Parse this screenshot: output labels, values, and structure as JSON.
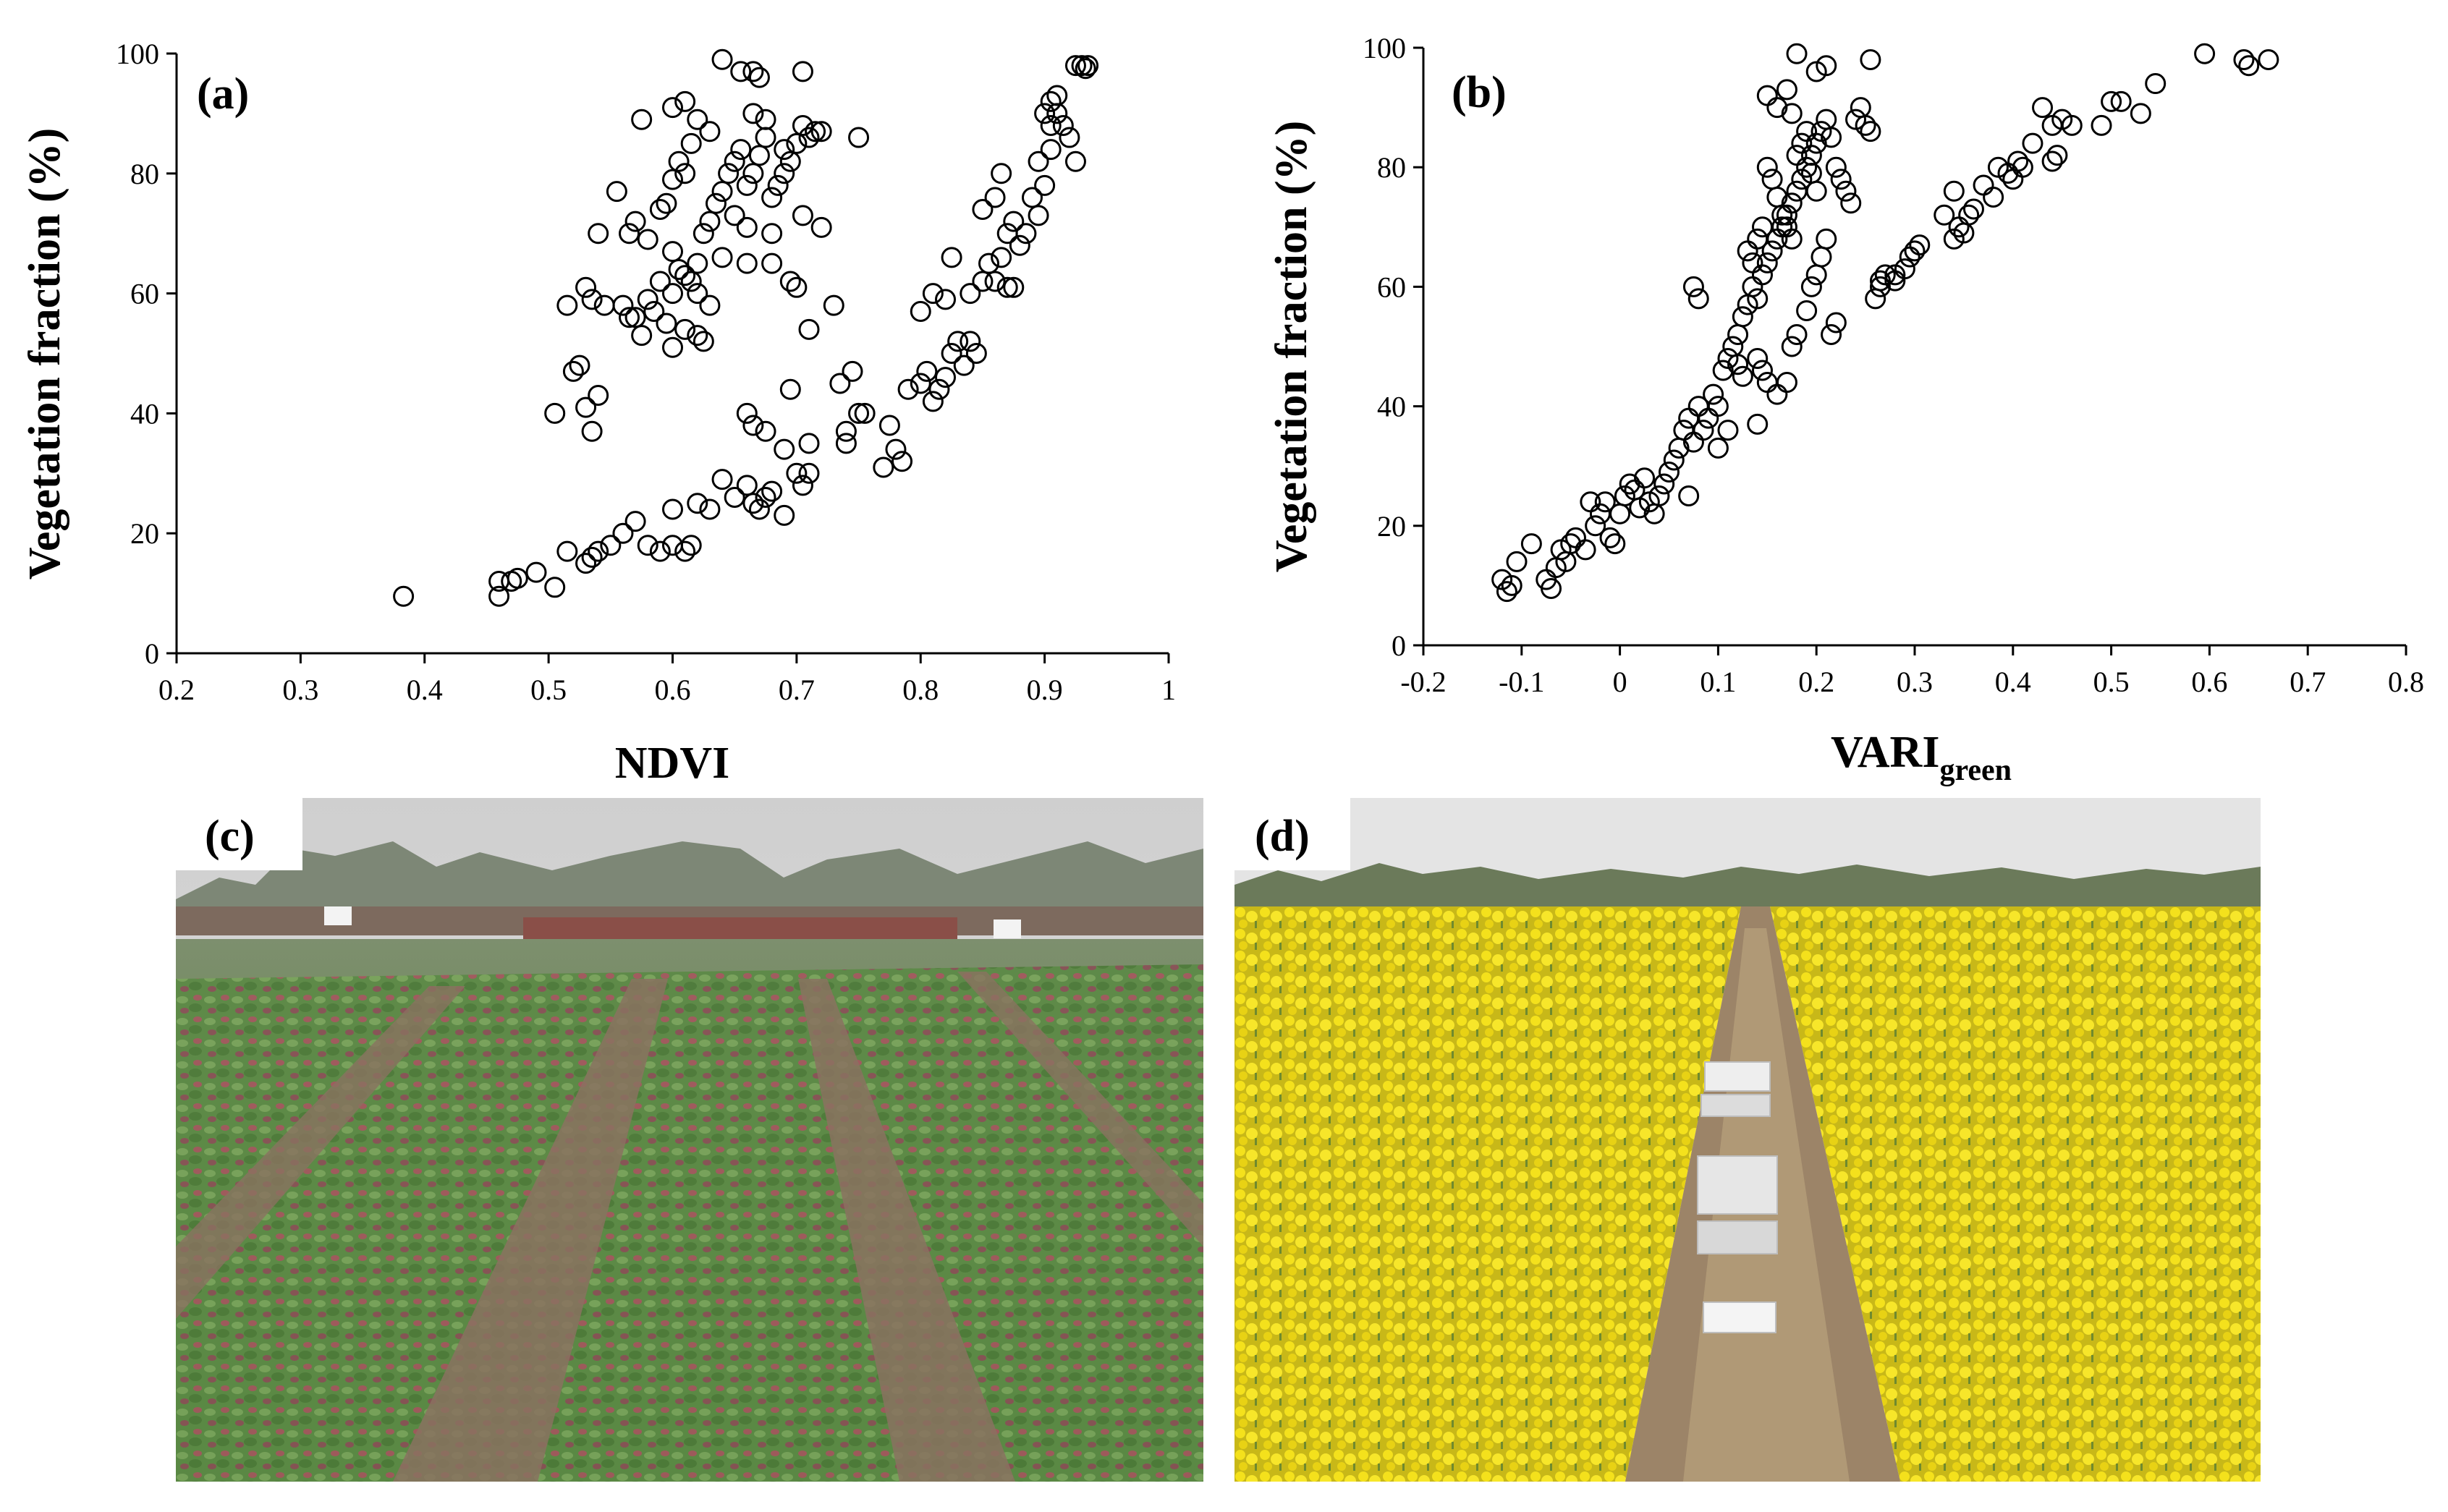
{
  "chart_data": [
    {
      "panel": "(a)",
      "type": "scatter",
      "xlabel": "NDVI",
      "ylabel": "Vegetation fraction (%)",
      "xlim": [
        0.2,
        1.0
      ],
      "ylim": [
        0,
        100
      ],
      "xticks": [
        "0.2",
        "0.3",
        "0.4",
        "0.5",
        "0.6",
        "0.7",
        "0.8",
        "0.9",
        "1"
      ],
      "yticks": [
        "0",
        "20",
        "40",
        "60",
        "80",
        "100"
      ],
      "grid": false,
      "marker": "open-circle",
      "points": [
        [
          0.383,
          9.5
        ],
        [
          0.46,
          9.5
        ],
        [
          0.46,
          12
        ],
        [
          0.47,
          12
        ],
        [
          0.475,
          12.5
        ],
        [
          0.49,
          13.5
        ],
        [
          0.505,
          11
        ],
        [
          0.515,
          17
        ],
        [
          0.53,
          15
        ],
        [
          0.535,
          16
        ],
        [
          0.54,
          17
        ],
        [
          0.55,
          18
        ],
        [
          0.56,
          20
        ],
        [
          0.57,
          22
        ],
        [
          0.58,
          18
        ],
        [
          0.59,
          17
        ],
        [
          0.6,
          18
        ],
        [
          0.61,
          17
        ],
        [
          0.615,
          18
        ],
        [
          0.6,
          24
        ],
        [
          0.62,
          25
        ],
        [
          0.63,
          24
        ],
        [
          0.64,
          29
        ],
        [
          0.65,
          26
        ],
        [
          0.66,
          28
        ],
        [
          0.665,
          25
        ],
        [
          0.67,
          24
        ],
        [
          0.675,
          26
        ],
        [
          0.68,
          27
        ],
        [
          0.69,
          23
        ],
        [
          0.7,
          30
        ],
        [
          0.705,
          28
        ],
        [
          0.71,
          30
        ],
        [
          0.66,
          40
        ],
        [
          0.665,
          38
        ],
        [
          0.675,
          37
        ],
        [
          0.69,
          34
        ],
        [
          0.695,
          44
        ],
        [
          0.71,
          35
        ],
        [
          0.735,
          45
        ],
        [
          0.74,
          35
        ],
        [
          0.74,
          37
        ],
        [
          0.745,
          47
        ],
        [
          0.75,
          40
        ],
        [
          0.755,
          40
        ],
        [
          0.77,
          31
        ],
        [
          0.775,
          38
        ],
        [
          0.78,
          34
        ],
        [
          0.785,
          32
        ],
        [
          0.79,
          44
        ],
        [
          0.8,
          45
        ],
        [
          0.805,
          47
        ],
        [
          0.81,
          42
        ],
        [
          0.815,
          44
        ],
        [
          0.82,
          46
        ],
        [
          0.825,
          50
        ],
        [
          0.83,
          52
        ],
        [
          0.835,
          48
        ],
        [
          0.84,
          52
        ],
        [
          0.845,
          50
        ],
        [
          0.8,
          57
        ],
        [
          0.81,
          60
        ],
        [
          0.82,
          59
        ],
        [
          0.825,
          66
        ],
        [
          0.84,
          60
        ],
        [
          0.85,
          62
        ],
        [
          0.855,
          65
        ],
        [
          0.86,
          62
        ],
        [
          0.865,
          66
        ],
        [
          0.87,
          61
        ],
        [
          0.875,
          61
        ],
        [
          0.85,
          74
        ],
        [
          0.86,
          76
        ],
        [
          0.865,
          80
        ],
        [
          0.87,
          70
        ],
        [
          0.875,
          72
        ],
        [
          0.88,
          68
        ],
        [
          0.885,
          70
        ],
        [
          0.89,
          76
        ],
        [
          0.895,
          73
        ],
        [
          0.9,
          78
        ],
        [
          0.895,
          82
        ],
        [
          0.905,
          84
        ],
        [
          0.905,
          88
        ],
        [
          0.91,
          90
        ],
        [
          0.915,
          88
        ],
        [
          0.92,
          86
        ],
        [
          0.925,
          82
        ],
        [
          0.9,
          90
        ],
        [
          0.905,
          92
        ],
        [
          0.91,
          93
        ],
        [
          0.925,
          98
        ],
        [
          0.93,
          98
        ],
        [
          0.935,
          98
        ],
        [
          0.933,
          97.5
        ],
        [
          0.505,
          40
        ],
        [
          0.52,
          47
        ],
        [
          0.525,
          48
        ],
        [
          0.53,
          41
        ],
        [
          0.535,
          37
        ],
        [
          0.54,
          43
        ],
        [
          0.545,
          58
        ],
        [
          0.515,
          58
        ],
        [
          0.53,
          61
        ],
        [
          0.535,
          59
        ],
        [
          0.54,
          70
        ],
        [
          0.555,
          77
        ],
        [
          0.56,
          58
        ],
        [
          0.565,
          56
        ],
        [
          0.57,
          56
        ],
        [
          0.575,
          53
        ],
        [
          0.58,
          59
        ],
        [
          0.585,
          57
        ],
        [
          0.59,
          62
        ],
        [
          0.595,
          55
        ],
        [
          0.6,
          51
        ],
        [
          0.61,
          54
        ],
        [
          0.62,
          53
        ],
        [
          0.625,
          52
        ],
        [
          0.565,
          70
        ],
        [
          0.57,
          72
        ],
        [
          0.58,
          69
        ],
        [
          0.59,
          74
        ],
        [
          0.595,
          75
        ],
        [
          0.6,
          79
        ],
        [
          0.605,
          82
        ],
        [
          0.61,
          80
        ],
        [
          0.615,
          85
        ],
        [
          0.6,
          67
        ],
        [
          0.605,
          64
        ],
        [
          0.61,
          63
        ],
        [
          0.615,
          62
        ],
        [
          0.62,
          65
        ],
        [
          0.625,
          70
        ],
        [
          0.63,
          72
        ],
        [
          0.635,
          75
        ],
        [
          0.64,
          77
        ],
        [
          0.645,
          80
        ],
        [
          0.65,
          82
        ],
        [
          0.655,
          84
        ],
        [
          0.66,
          78
        ],
        [
          0.665,
          80
        ],
        [
          0.67,
          83
        ],
        [
          0.675,
          86
        ],
        [
          0.68,
          76
        ],
        [
          0.685,
          78
        ],
        [
          0.69,
          80
        ],
        [
          0.695,
          82
        ],
        [
          0.7,
          85
        ],
        [
          0.705,
          88
        ],
        [
          0.71,
          86
        ],
        [
          0.715,
          87
        ],
        [
          0.6,
          91
        ],
        [
          0.61,
          92
        ],
        [
          0.62,
          89
        ],
        [
          0.63,
          87
        ],
        [
          0.575,
          89
        ],
        [
          0.64,
          99
        ],
        [
          0.655,
          97
        ],
        [
          0.665,
          97
        ],
        [
          0.67,
          96
        ],
        [
          0.705,
          97
        ],
        [
          0.72,
          87
        ],
        [
          0.75,
          86
        ],
        [
          0.665,
          90
        ],
        [
          0.675,
          89
        ],
        [
          0.69,
          84
        ],
        [
          0.695,
          62
        ],
        [
          0.68,
          65
        ],
        [
          0.7,
          61
        ],
        [
          0.71,
          54
        ],
        [
          0.73,
          58
        ],
        [
          0.72,
          71
        ],
        [
          0.705,
          73
        ],
        [
          0.68,
          70
        ],
        [
          0.66,
          71
        ],
        [
          0.65,
          73
        ],
        [
          0.64,
          66
        ],
        [
          0.66,
          65
        ],
        [
          0.62,
          60
        ],
        [
          0.63,
          58
        ],
        [
          0.6,
          60
        ]
      ]
    },
    {
      "panel": "(b)",
      "type": "scatter",
      "xlabel": "VARI",
      "xlabel_sub": "green",
      "ylabel": "Vegetation fraction (%)",
      "xlim": [
        -0.2,
        0.8
      ],
      "ylim": [
        0,
        100
      ],
      "xticks": [
        "-0.2",
        "-0.1",
        "0",
        "0.1",
        "0.2",
        "0.3",
        "0.4",
        "0.5",
        "0.6",
        "0.7",
        "0.8"
      ],
      "yticks": [
        "0",
        "20",
        "40",
        "60",
        "80",
        "100"
      ],
      "grid": false,
      "marker": "open-circle",
      "points": [
        [
          -0.12,
          11
        ],
        [
          -0.115,
          9
        ],
        [
          -0.11,
          10
        ],
        [
          -0.105,
          14
        ],
        [
          -0.09,
          17
        ],
        [
          -0.075,
          11
        ],
        [
          -0.07,
          9.5
        ],
        [
          -0.065,
          13
        ],
        [
          -0.06,
          16
        ],
        [
          -0.055,
          14
        ],
        [
          -0.05,
          17
        ],
        [
          -0.045,
          18
        ],
        [
          -0.035,
          16
        ],
        [
          -0.03,
          24
        ],
        [
          -0.025,
          20
        ],
        [
          -0.02,
          22
        ],
        [
          -0.015,
          24
        ],
        [
          -0.01,
          18
        ],
        [
          -0.005,
          17
        ],
        [
          0.0,
          22
        ],
        [
          0.005,
          25
        ],
        [
          0.01,
          27
        ],
        [
          0.015,
          26
        ],
        [
          0.02,
          23
        ],
        [
          0.025,
          28
        ],
        [
          0.03,
          24
        ],
        [
          0.035,
          22
        ],
        [
          0.04,
          25
        ],
        [
          0.045,
          27
        ],
        [
          0.05,
          29
        ],
        [
          0.055,
          31
        ],
        [
          0.06,
          33
        ],
        [
          0.065,
          36
        ],
        [
          0.07,
          38
        ],
        [
          0.075,
          34
        ],
        [
          0.08,
          40
        ],
        [
          0.085,
          36
        ],
        [
          0.09,
          38
        ],
        [
          0.095,
          42
        ],
        [
          0.1,
          40
        ],
        [
          0.105,
          46
        ],
        [
          0.11,
          48
        ],
        [
          0.115,
          50
        ],
        [
          0.12,
          52
        ],
        [
          0.125,
          55
        ],
        [
          0.13,
          57
        ],
        [
          0.135,
          60
        ],
        [
          0.14,
          58
        ],
        [
          0.145,
          62
        ],
        [
          0.15,
          64
        ],
        [
          0.155,
          66
        ],
        [
          0.16,
          68
        ],
        [
          0.165,
          70
        ],
        [
          0.17,
          72
        ],
        [
          0.175,
          74
        ],
        [
          0.18,
          76
        ],
        [
          0.185,
          78
        ],
        [
          0.19,
          80
        ],
        [
          0.195,
          82
        ],
        [
          0.2,
          84
        ],
        [
          0.205,
          86
        ],
        [
          0.21,
          88
        ],
        [
          0.215,
          85
        ],
        [
          0.22,
          80
        ],
        [
          0.225,
          78
        ],
        [
          0.23,
          76
        ],
        [
          0.235,
          74
        ],
        [
          0.24,
          88
        ],
        [
          0.245,
          90
        ],
        [
          0.25,
          87
        ],
        [
          0.255,
          86
        ],
        [
          0.18,
          99
        ],
        [
          0.2,
          96
        ],
        [
          0.21,
          97
        ],
        [
          0.255,
          98
        ],
        [
          0.15,
          92
        ],
        [
          0.16,
          90
        ],
        [
          0.17,
          93
        ],
        [
          0.175,
          89
        ],
        [
          0.15,
          80
        ],
        [
          0.155,
          78
        ],
        [
          0.16,
          75
        ],
        [
          0.165,
          72
        ],
        [
          0.17,
          70
        ],
        [
          0.175,
          68
        ],
        [
          0.18,
          82
        ],
        [
          0.185,
          84
        ],
        [
          0.19,
          86
        ],
        [
          0.195,
          79
        ],
        [
          0.2,
          76
        ],
        [
          0.145,
          70
        ],
        [
          0.14,
          68
        ],
        [
          0.135,
          64
        ],
        [
          0.13,
          66
        ],
        [
          0.14,
          48
        ],
        [
          0.145,
          46
        ],
        [
          0.15,
          44
        ],
        [
          0.16,
          42
        ],
        [
          0.17,
          44
        ],
        [
          0.175,
          50
        ],
        [
          0.18,
          52
        ],
        [
          0.19,
          56
        ],
        [
          0.195,
          60
        ],
        [
          0.2,
          62
        ],
        [
          0.205,
          65
        ],
        [
          0.21,
          68
        ],
        [
          0.215,
          52
        ],
        [
          0.22,
          54
        ],
        [
          0.14,
          37
        ],
        [
          0.1,
          33
        ],
        [
          0.11,
          36
        ],
        [
          0.07,
          25
        ],
        [
          0.075,
          60
        ],
        [
          0.08,
          58
        ],
        [
          0.12,
          47
        ],
        [
          0.125,
          45
        ],
        [
          0.26,
          58
        ],
        [
          0.265,
          61
        ],
        [
          0.27,
          62
        ],
        [
          0.28,
          61
        ],
        [
          0.29,
          63
        ],
        [
          0.3,
          66
        ],
        [
          0.305,
          67
        ],
        [
          0.34,
          76
        ],
        [
          0.345,
          70
        ],
        [
          0.35,
          69
        ],
        [
          0.355,
          72
        ],
        [
          0.37,
          77
        ],
        [
          0.38,
          75
        ],
        [
          0.385,
          80
        ],
        [
          0.4,
          78
        ],
        [
          0.405,
          81
        ],
        [
          0.41,
          80
        ],
        [
          0.42,
          84
        ],
        [
          0.43,
          90
        ],
        [
          0.44,
          87
        ],
        [
          0.445,
          82
        ],
        [
          0.45,
          88
        ],
        [
          0.46,
          87
        ],
        [
          0.49,
          87
        ],
        [
          0.5,
          91
        ],
        [
          0.51,
          91
        ],
        [
          0.53,
          89
        ],
        [
          0.545,
          94
        ],
        [
          0.595,
          99
        ],
        [
          0.635,
          98
        ],
        [
          0.64,
          97
        ],
        [
          0.66,
          98
        ],
        [
          0.265,
          60
        ],
        [
          0.28,
          62
        ],
        [
          0.295,
          65
        ],
        [
          0.33,
          72
        ],
        [
          0.34,
          68
        ],
        [
          0.36,
          73
        ],
        [
          0.395,
          79
        ],
        [
          0.44,
          81
        ]
      ]
    }
  ],
  "panels": {
    "c": {
      "label": "(c)"
    },
    "d": {
      "label": "(d)"
    }
  },
  "colors": {
    "sky": "#dcdcdc",
    "soil": "#8a7260",
    "crop_green": "#5f8a4a",
    "crop_red": "#a0525a",
    "rapeseed_yellow": "#f1df1a",
    "rapeseed_stem": "#6f8a2e",
    "path_soil": "#9c8468"
  }
}
